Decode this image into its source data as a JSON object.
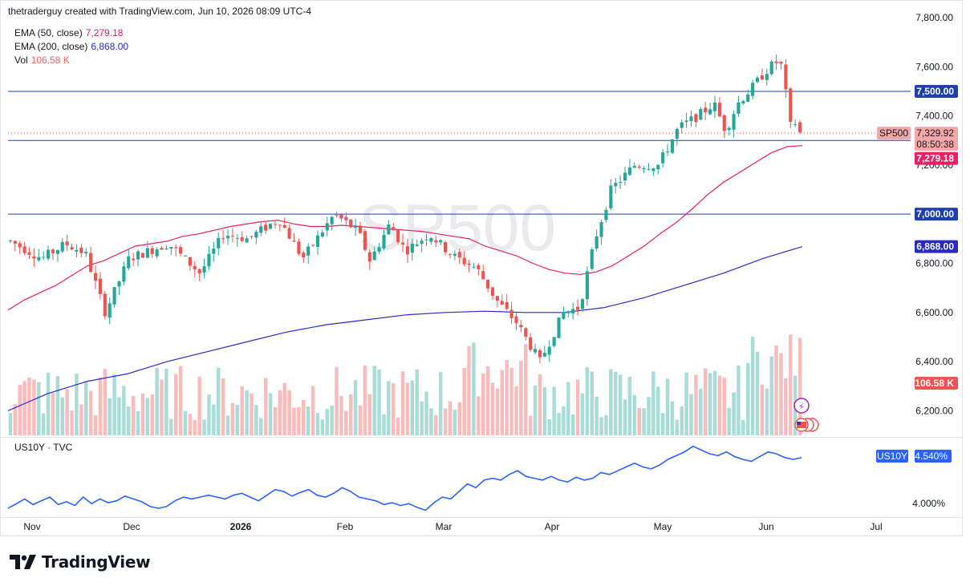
{
  "header": {
    "attribution": "thetraderguy created with TradingView.com, Jun 10, 2026 08:09 UTC-4"
  },
  "legend": {
    "ema50": {
      "label": "EMA (50, close)",
      "value": "7,279.18",
      "color": "#d81b60"
    },
    "ema200": {
      "label": "EMA (200, close)",
      "value": "6,868.00",
      "color": "#2a2ac0"
    },
    "vol": {
      "label": "Vol",
      "value": "106.58 K",
      "color": "#f06060"
    }
  },
  "watermark": "SP500",
  "brand": {
    "name": "TradingView"
  },
  "colors": {
    "up": "#26a69a",
    "down": "#ef5350",
    "vol_up": "#a9dcd7",
    "vol_down": "#f8bcbc",
    "hline": "#1e3fae",
    "us10y": "#2962ff"
  },
  "icons": [
    "lightning-icon",
    "us-flag-icon"
  ],
  "chart_data": [
    {
      "type": "candlestick",
      "symbol": "SP500",
      "y_axis": {
        "min": 6100,
        "max": 7800,
        "ticks": [
          "6,200.00",
          "6,400.00",
          "6,600.00",
          "6,800.00",
          "7,000.00",
          "7,200.00",
          "7,400.00",
          "7,600.00",
          "7,800.00"
        ]
      },
      "x_axis": {
        "labels": [
          "Nov",
          "Dec",
          "2026",
          "Feb",
          "Mar",
          "Apr",
          "May",
          "Jun",
          "Jul"
        ]
      },
      "horizontal_lines": [
        {
          "value": 7500,
          "label": "7,500.00"
        },
        {
          "value": 7300,
          "label": "7,300.00"
        },
        {
          "value": 7000,
          "label": "7,000.00"
        }
      ],
      "last_price": {
        "symbol": "SP500",
        "value": "7,329.92",
        "countdown": "08:50:38"
      },
      "series": [
        {
          "name": "EMA (50, close)",
          "last": "7,279.18",
          "points": [
            [
              0,
              6610
            ],
            [
              20,
              6650
            ],
            [
              40,
              6680
            ],
            [
              60,
              6710
            ],
            [
              80,
              6750
            ],
            [
              100,
              6790
            ],
            [
              120,
              6810
            ],
            [
              140,
              6840
            ],
            [
              160,
              6870
            ],
            [
              180,
              6880
            ],
            [
              200,
              6890
            ],
            [
              220,
              6910
            ],
            [
              240,
              6920
            ],
            [
              260,
              6935
            ],
            [
              280,
              6950
            ],
            [
              300,
              6960
            ],
            [
              320,
              6970
            ],
            [
              340,
              6975
            ],
            [
              360,
              6960
            ],
            [
              380,
              6950
            ],
            [
              400,
              6950
            ],
            [
              420,
              6955
            ],
            [
              440,
              6950
            ],
            [
              460,
              6945
            ],
            [
              480,
              6940
            ],
            [
              500,
              6935
            ],
            [
              520,
              6930
            ],
            [
              540,
              6920
            ],
            [
              560,
              6910
            ],
            [
              580,
              6900
            ],
            [
              600,
              6870
            ],
            [
              620,
              6850
            ],
            [
              640,
              6830
            ],
            [
              660,
              6800
            ],
            [
              680,
              6775
            ],
            [
              700,
              6760
            ],
            [
              720,
              6755
            ],
            [
              740,
              6765
            ],
            [
              760,
              6790
            ],
            [
              780,
              6830
            ],
            [
              800,
              6870
            ],
            [
              820,
              6920
            ],
            [
              840,
              6965
            ],
            [
              860,
              7020
            ],
            [
              880,
              7080
            ],
            [
              900,
              7130
            ],
            [
              920,
              7170
            ],
            [
              940,
              7210
            ],
            [
              960,
              7250
            ],
            [
              980,
              7275
            ],
            [
              999,
              7279
            ]
          ]
        },
        {
          "name": "EMA (200, close)",
          "last": "6,868.00",
          "points": [
            [
              0,
              6200
            ],
            [
              50,
              6270
            ],
            [
              100,
              6320
            ],
            [
              150,
              6350
            ],
            [
              200,
              6400
            ],
            [
              250,
              6440
            ],
            [
              300,
              6480
            ],
            [
              350,
              6520
            ],
            [
              400,
              6550
            ],
            [
              450,
              6570
            ],
            [
              500,
              6590
            ],
            [
              550,
              6600
            ],
            [
              600,
              6605
            ],
            [
              650,
              6600
            ],
            [
              700,
              6600
            ],
            [
              750,
              6620
            ],
            [
              800,
              6660
            ],
            [
              850,
              6710
            ],
            [
              900,
              6760
            ],
            [
              950,
              6820
            ],
            [
              999,
              6868
            ]
          ]
        }
      ],
      "volume": {
        "last": "106.58 K"
      }
    },
    {
      "type": "line",
      "symbol": "US10Y",
      "source": "TVC",
      "title": "US10Y · TVC",
      "last": "4.540%",
      "y_tick": "4.000%",
      "values": [
        4.0,
        4.05,
        4.1,
        4.04,
        4.08,
        4.12,
        4.04,
        4.07,
        4.03,
        4.12,
        4.05,
        4.1,
        4.06,
        4.08,
        4.13,
        4.1,
        4.07,
        4.02,
        4.0,
        4.02,
        4.08,
        4.12,
        4.1,
        4.12,
        4.14,
        4.12,
        4.1,
        4.14,
        4.16,
        4.12,
        4.08,
        4.14,
        4.2,
        4.18,
        4.13,
        4.17,
        4.2,
        4.14,
        4.12,
        4.16,
        4.22,
        4.18,
        4.12,
        4.1,
        4.08,
        4.04,
        4.06,
        4.03,
        4.05,
        4.01,
        3.98,
        4.06,
        4.12,
        4.1,
        4.18,
        4.26,
        4.22,
        4.3,
        4.32,
        4.3,
        4.36,
        4.4,
        4.34,
        4.32,
        4.3,
        4.34,
        4.3,
        4.28,
        4.33,
        4.3,
        4.32,
        4.38,
        4.36,
        4.4,
        4.44,
        4.48,
        4.44,
        4.42,
        4.46,
        4.52,
        4.56,
        4.6,
        4.66,
        4.62,
        4.58,
        4.56,
        4.6,
        4.55,
        4.52,
        4.5,
        4.55,
        4.6,
        4.58,
        4.54,
        4.52,
        4.54
      ]
    }
  ]
}
